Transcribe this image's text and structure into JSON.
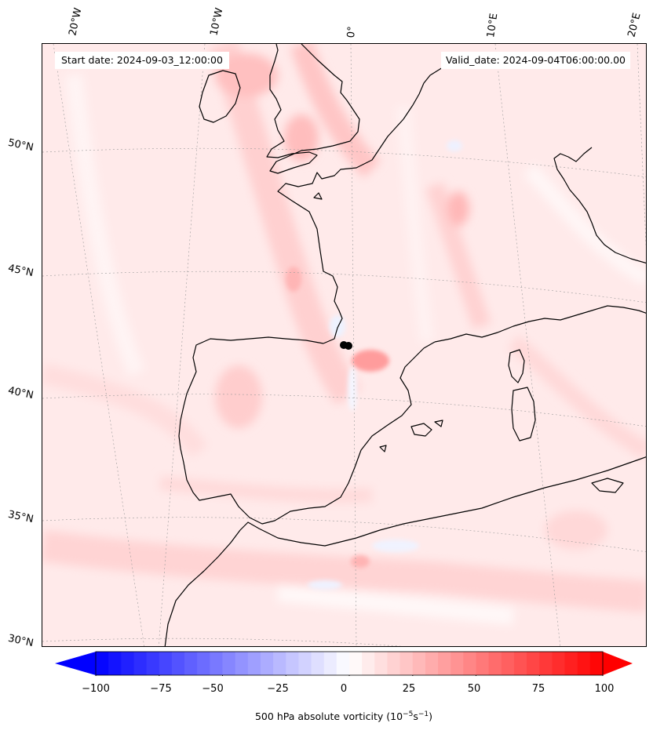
{
  "map": {
    "start_date_text": "Start date: 2024-09-03_12:00:00",
    "valid_date_text": "Valid_date: 2024-09-04T06:00:00.00",
    "lon_labels": [
      "20°W",
      "10°W",
      "0°",
      "10°E",
      "20°E"
    ],
    "lat_labels": [
      "50°N",
      "45°N",
      "40°N",
      "35°N",
      "30°N"
    ],
    "field": "500 hPa absolute vorticity",
    "colormap": "bwr",
    "marker_color": "#000000"
  },
  "colorbar": {
    "ticks": [
      "−100",
      "−75",
      "−50",
      "−25",
      "0",
      "25",
      "50",
      "75",
      "100"
    ],
    "label_main": "500 hPa absolute vorticity (10",
    "label_exp1": "−5",
    "label_mid": "s",
    "label_exp2": "−1",
    "label_end": ")",
    "min_color": "#0000ff",
    "mid_color": "#ffffff",
    "max_color": "#ff0000",
    "range": [
      -100,
      100
    ]
  }
}
